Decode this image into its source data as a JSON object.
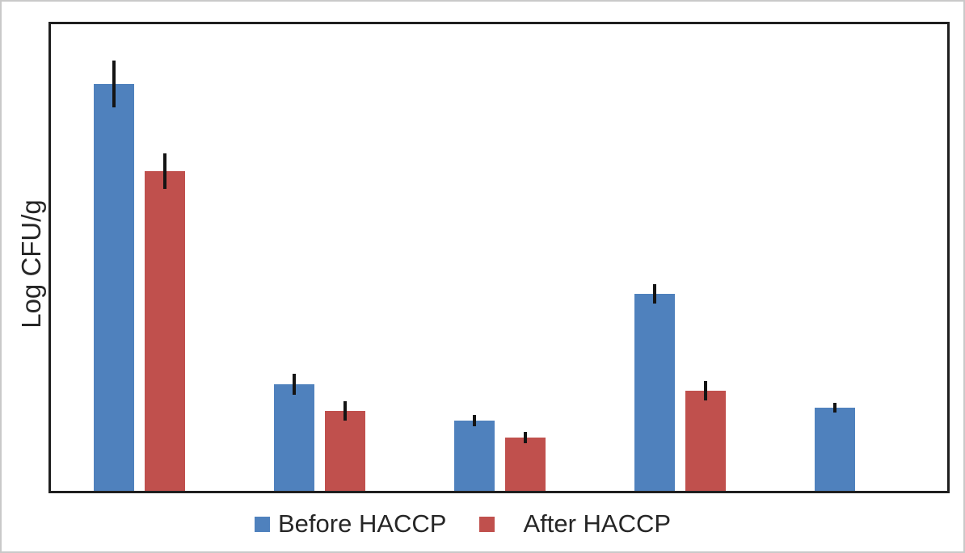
{
  "chart_data": {
    "type": "bar",
    "title": "",
    "xlabel": "",
    "ylabel": "Log CFU/g",
    "categories": [
      "",
      "",
      "",
      "",
      ""
    ],
    "series": [
      {
        "name": "Before HACCP",
        "color": "#4f81bd",
        "values": [
          6.1,
          1.6,
          1.05,
          2.95,
          1.25
        ],
        "errors": [
          0.35,
          0.16,
          0.09,
          0.15,
          0.07
        ]
      },
      {
        "name": "After HACCP",
        "color": "#c0504d",
        "values": [
          4.8,
          1.2,
          0.8,
          1.5,
          null
        ],
        "errors": [
          0.27,
          0.14,
          0.09,
          0.15,
          null
        ]
      }
    ],
    "ylim": [
      0,
      7
    ],
    "grid": false,
    "axis_tick_labels_visible": false,
    "legend_position": "bottom",
    "error_bars": true,
    "error_bar_color": "#141414"
  },
  "frame": {
    "plot_border_color": "#1f1f1f",
    "outer_border_color": "#c9c9c9",
    "background": "#ffffff"
  }
}
